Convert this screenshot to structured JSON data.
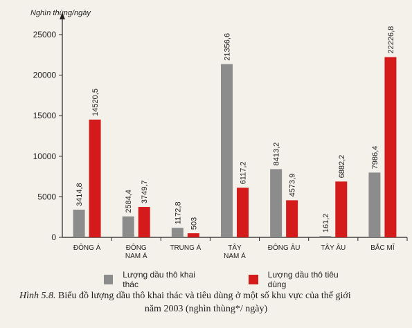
{
  "chart_data": {
    "type": "bar",
    "ylabel": "Nghìn thùng/ngày",
    "ylim": [
      0,
      25000
    ],
    "yticks": [
      "0",
      "5000",
      "10000",
      "15000",
      "20000",
      "25000"
    ],
    "ytick_values": [
      0,
      5000,
      10000,
      15000,
      20000,
      25000
    ],
    "categories": [
      [
        "ĐÔNG Á"
      ],
      [
        "ĐÔNG",
        "NAM Á"
      ],
      [
        "TRUNG Á"
      ],
      [
        "TÂY",
        "NAM Á"
      ],
      [
        "ĐÔNG ÂU"
      ],
      [
        "TÂY ÂU"
      ],
      [
        "BẮC MĨ"
      ]
    ],
    "series": [
      {
        "name": "Lượng dầu thô khai thác",
        "color": "#8c8c8c",
        "values": [
          3414.8,
          2584.4,
          1172.8,
          21356.6,
          8413.2,
          161.2,
          7986.4
        ],
        "labels": [
          "3414,8",
          "2584,4",
          "1172,8",
          "21356,6",
          "8413,2",
          "161,2",
          "7986,4"
        ]
      },
      {
        "name": "Lượng dầu thô tiêu dùng",
        "color": "#d41a1a",
        "values": [
          14520.5,
          3749.7,
          503,
          6117.2,
          4573.9,
          6882.2,
          22226.8
        ],
        "labels": [
          "14520,5",
          "3749,7",
          "503",
          "6117,2",
          "4573,9",
          "6882,2",
          "22226,8"
        ]
      }
    ],
    "legend_position": "bottom",
    "grid": false
  },
  "caption": {
    "prefix": "Hình 5.8.",
    "line1": " Biểu đồ lượng dầu thô khai thác và tiêu dùng ở một số khu vực của thế giới",
    "line2": "năm 2003 (nghìn thùng*/ ngày)"
  }
}
